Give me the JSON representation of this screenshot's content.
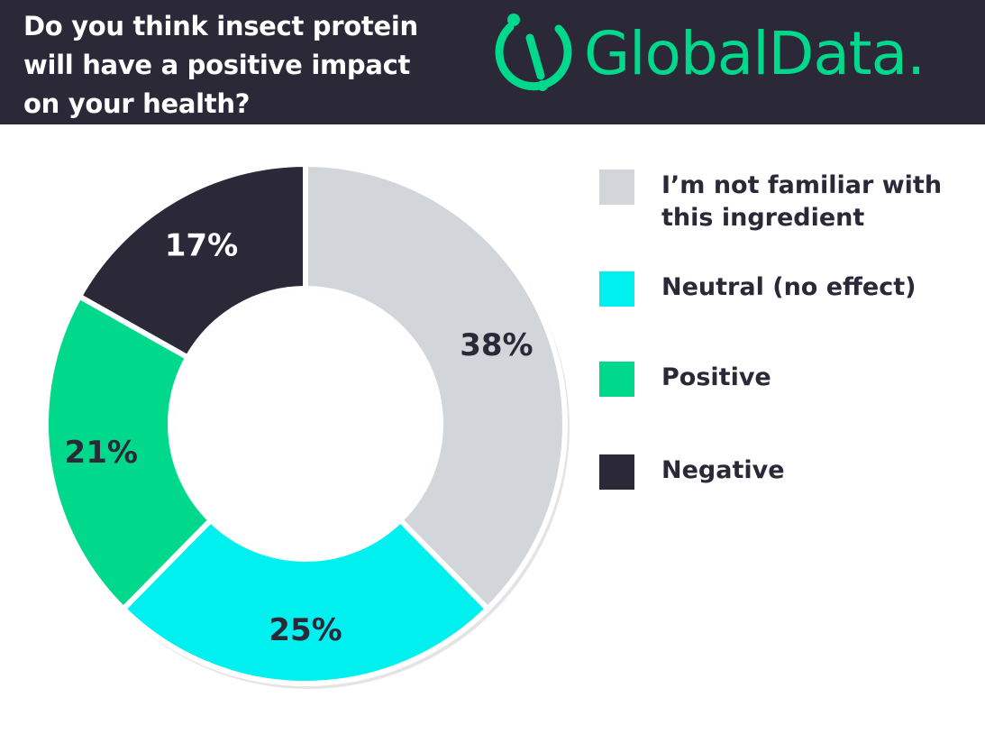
{
  "header": {
    "title": "Do you think insect protein will have a positive impact on your health?",
    "logo_text": "GlobalData."
  },
  "colors": {
    "header_bg": "#2b2838",
    "brand_green": "#00d98b"
  },
  "chart_data": {
    "type": "pie",
    "donut": true,
    "categories": [
      "I’m not familiar with this ingredient",
      "Neutral (no effect)",
      "Positive",
      "Negative"
    ],
    "values": [
      38,
      25,
      21,
      17
    ],
    "labels": [
      "38%",
      "25%",
      "21%",
      "17%"
    ],
    "colors": [
      "#d2d5d9",
      "#00f0f0",
      "#00d98b",
      "#2b2838"
    ],
    "label_colors": [
      "#2b2838",
      "#2b2838",
      "#2b2838",
      "#ffffff"
    ],
    "legend_position": "right"
  }
}
